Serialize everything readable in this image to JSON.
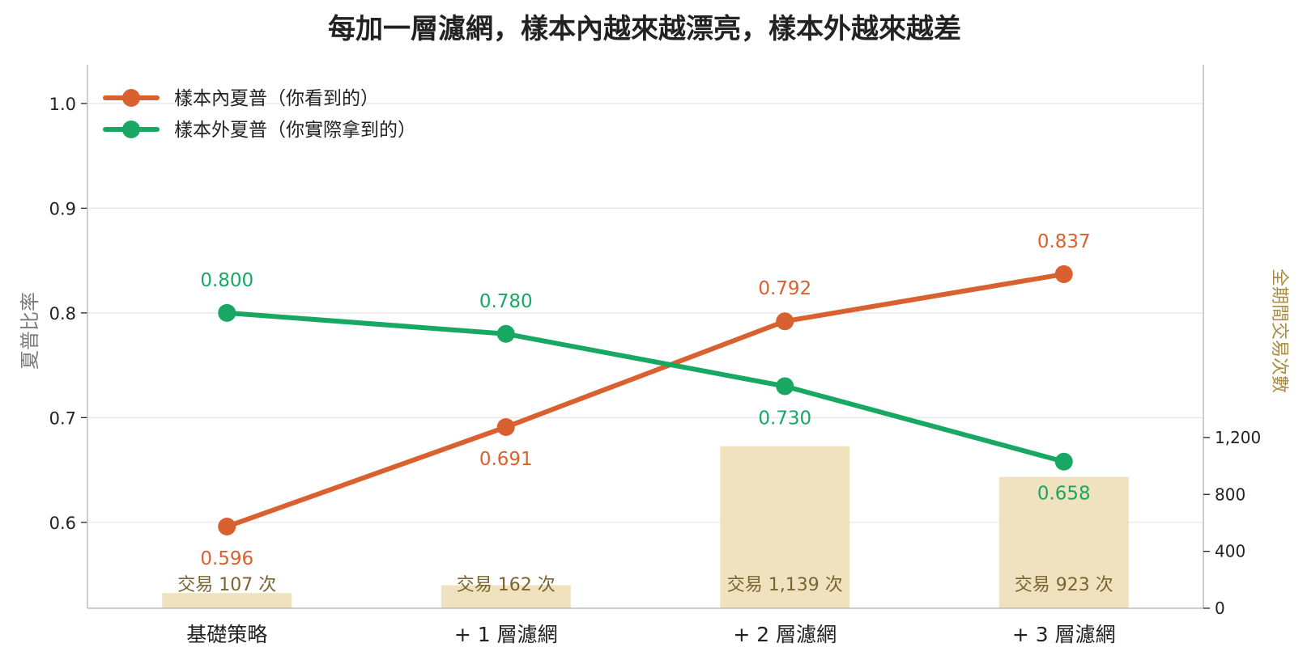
{
  "chart_data": {
    "type": "line",
    "title": "每加一層濾網，樣本內越來越漂亮，樣本外越來越差",
    "categories": [
      "基礎策略",
      "+ 1 層濾網",
      "+ 2 層濾網",
      "+ 3 層濾網"
    ],
    "ylabel": "夏普比率",
    "ylim": [
      0.518,
      1.037
    ],
    "yticks": [
      0.6,
      0.7,
      0.8,
      0.9,
      1.0
    ],
    "ytick_labels": [
      "0.6",
      "0.7",
      "0.8",
      "0.9",
      "1.0"
    ],
    "grid": true,
    "legend_position": "top-left",
    "series": [
      {
        "name": "樣本內夏普（你看到的）",
        "color": "#D9602F",
        "values": [
          0.596,
          0.691,
          0.792,
          0.837
        ],
        "labels": [
          "0.596",
          "0.691",
          "0.792",
          "0.837"
        ]
      },
      {
        "name": "樣本外夏普（你實際拿到的）",
        "color": "#18A864",
        "values": [
          0.8,
          0.78,
          0.73,
          0.658
        ],
        "labels": [
          "0.800",
          "0.780",
          "0.730",
          "0.658"
        ]
      }
    ],
    "secondary_axis": {
      "ylabel": "全期間交易次數",
      "type": "bar",
      "color": "#F0E2BF",
      "label_color": "#a88b3c",
      "values": [
        107,
        162,
        1139,
        923
      ],
      "bar_labels": [
        "交易 107 次",
        "交易 162 次",
        "交易 1,139 次",
        "交易 923 次"
      ],
      "ticks": [
        0,
        400,
        800,
        1200
      ],
      "tick_labels": [
        "0",
        "400",
        "800",
        "1,200"
      ],
      "max": 3820
    }
  }
}
